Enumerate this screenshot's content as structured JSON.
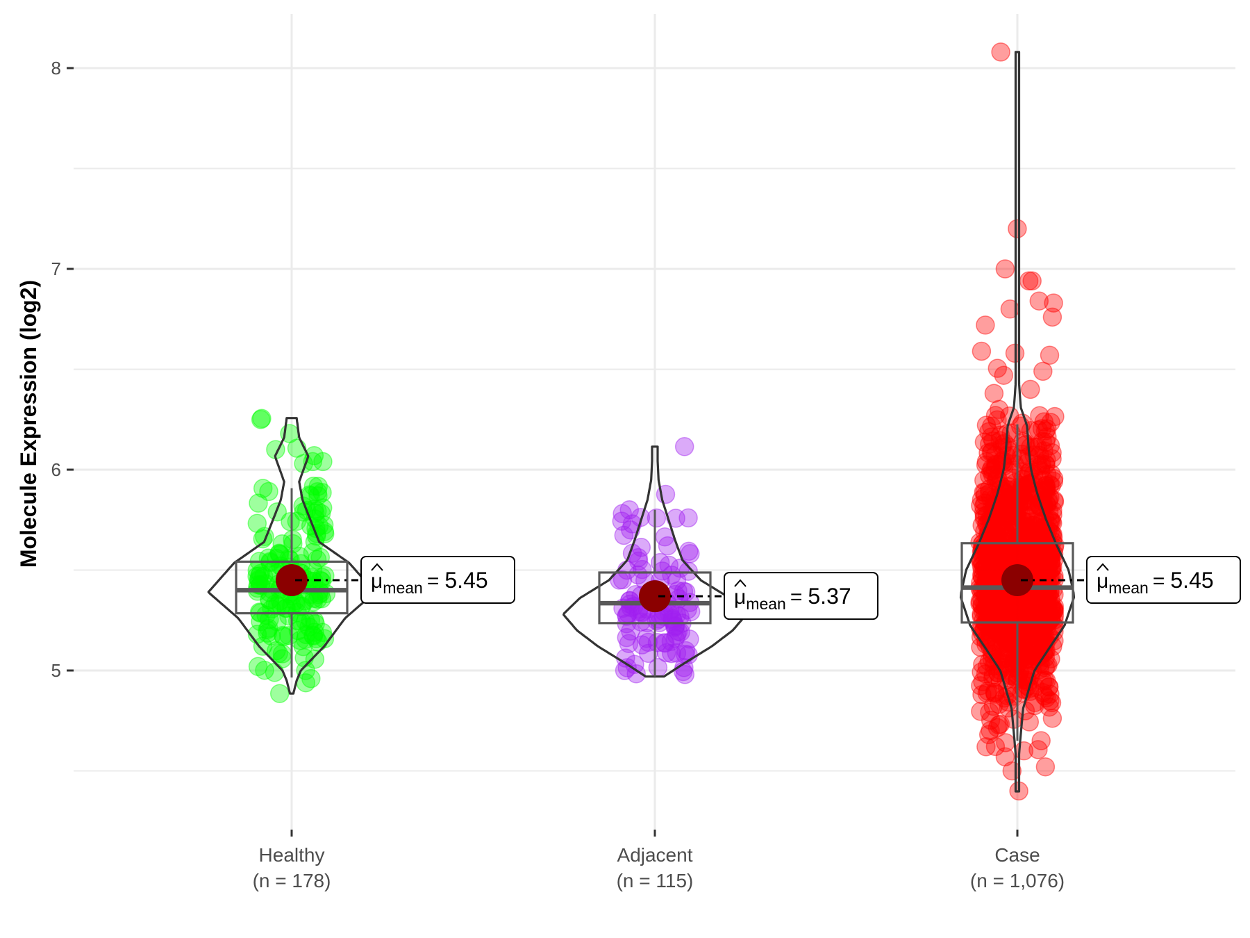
{
  "chart_data": {
    "type": "violin",
    "title": "",
    "xlabel": "",
    "ylabel": "Molecule Expression (log2)",
    "ylim": [
      4.3,
      8.25
    ],
    "yticks": [
      5,
      6,
      7,
      8
    ],
    "ytick_labels": [
      "5",
      "6",
      "7",
      "8"
    ],
    "grid": true,
    "legend": "none",
    "mean_label_symbol": "μ",
    "mean_label_subscript": "mean",
    "mean_label_equals": "=",
    "groups": [
      {
        "name": "Healthy",
        "n_label": "(n = 178)",
        "n": 178,
        "color": "#00FF00",
        "mean": 5.45,
        "mean_label": "5.45",
        "median": 5.4,
        "q1": 5.285,
        "q3": 5.542,
        "whisker_low": 4.965,
        "whisker_high": 5.908,
        "violin_min": 4.885,
        "violin_max": 6.257,
        "violin_profile": [
          [
            4.885,
            0.02
          ],
          [
            4.95,
            0.06
          ],
          [
            5.0,
            0.11
          ],
          [
            5.12,
            0.39
          ],
          [
            5.26,
            0.64
          ],
          [
            5.39,
            1.0
          ],
          [
            5.536,
            0.69
          ],
          [
            5.64,
            0.33
          ],
          [
            5.755,
            0.22
          ],
          [
            5.85,
            0.13
          ],
          [
            5.94,
            0.09
          ],
          [
            6.067,
            0.2
          ],
          [
            6.16,
            0.09
          ],
          [
            6.257,
            0.06
          ]
        ],
        "outliers": [
          6.25,
          6.255,
          6.18,
          6.107,
          6.1,
          6.07,
          6.04,
          6.03,
          6.04,
          5.917,
          5.87,
          5.81,
          5.87,
          5.79,
          5.72,
          4.96,
          4.885,
          5.0
        ]
      },
      {
        "name": "Adjacent",
        "n_label": "(n = 115)",
        "n": 115,
        "color": "#A020F0",
        "mean": 5.37,
        "mean_label": "5.37",
        "median": 5.335,
        "q1": 5.236,
        "q3": 5.488,
        "whisker_low": 4.97,
        "whisker_high": 5.8,
        "violin_min": 4.97,
        "violin_max": 6.115,
        "violin_profile": [
          [
            4.97,
            0.1
          ],
          [
            5.03,
            0.3
          ],
          [
            5.12,
            0.62
          ],
          [
            5.2,
            0.85
          ],
          [
            5.28,
            1.0
          ],
          [
            5.36,
            0.82
          ],
          [
            5.45,
            0.5
          ],
          [
            5.55,
            0.3
          ],
          [
            5.65,
            0.22
          ],
          [
            5.75,
            0.15
          ],
          [
            5.85,
            0.08
          ],
          [
            5.95,
            0.04
          ],
          [
            6.05,
            0.03
          ],
          [
            6.115,
            0.03
          ]
        ],
        "outliers": [
          6.115,
          5.877,
          5.8,
          5.76,
          5.73,
          5.7,
          5.03,
          5.0,
          4.98
        ]
      },
      {
        "name": "Case",
        "n_label": "(n = 1,076)",
        "n": 1076,
        "color": "#FF0000",
        "mean": 5.45,
        "mean_label": "5.45",
        "median": 5.413,
        "q1": 5.239,
        "q3": 5.634,
        "whisker_low": 4.65,
        "whisker_high": 6.226,
        "violin_min": 4.398,
        "violin_max": 8.08,
        "violin_profile": [
          [
            4.398,
            0.0
          ],
          [
            4.55,
            0.02
          ],
          [
            4.65,
            0.05
          ],
          [
            4.81,
            0.1
          ],
          [
            5.0,
            0.3
          ],
          [
            5.12,
            0.58
          ],
          [
            5.225,
            0.83
          ],
          [
            5.37,
            1.0
          ],
          [
            5.5,
            0.9
          ],
          [
            5.63,
            0.68
          ],
          [
            5.755,
            0.5
          ],
          [
            5.88,
            0.35
          ],
          [
            6.0,
            0.24
          ],
          [
            6.1,
            0.2
          ],
          [
            6.22,
            0.17
          ],
          [
            6.31,
            0.06
          ],
          [
            6.45,
            0.025
          ],
          [
            6.7,
            0.015
          ],
          [
            7.0,
            0.01
          ],
          [
            7.5,
            0.008
          ],
          [
            8.08,
            0.006
          ]
        ],
        "outliers": [
          8.08,
          7.2,
          7.0,
          6.94,
          6.94,
          6.84,
          6.83,
          6.8,
          6.76,
          6.72,
          6.57,
          6.58,
          6.59,
          6.505,
          6.49,
          6.47,
          6.4,
          6.38,
          6.3,
          6.27,
          4.52,
          4.5,
          4.4,
          4.62,
          4.57,
          4.6
        ]
      }
    ]
  }
}
